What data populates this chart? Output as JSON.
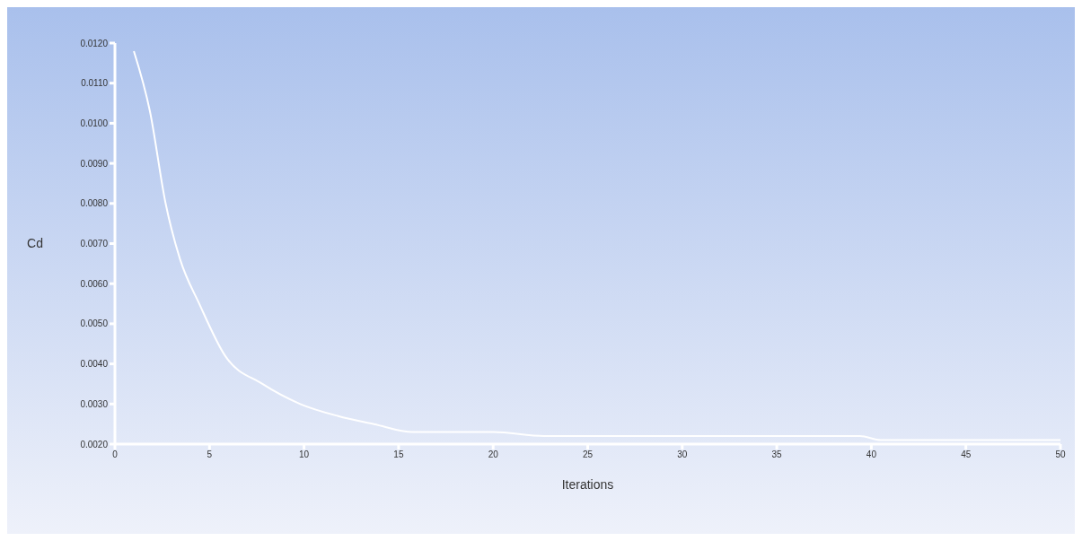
{
  "chart_data": {
    "type": "line",
    "xlabel": "Iterations",
    "ylabel": "Cd",
    "x": [
      1,
      1.85,
      2.68,
      3.45,
      4.46,
      5.83,
      7.8,
      9.8,
      11.8,
      13.7,
      15.75,
      17.6,
      20,
      22.7,
      25,
      30,
      35,
      39.4,
      40.5,
      45,
      50
    ],
    "series": [
      {
        "color": "#ffffff",
        "values": [
          0.0118,
          0.0103,
          0.008,
          0.0066,
          0.0055,
          0.0042,
          0.0035,
          0.003,
          0.0027,
          0.0025,
          0.0023,
          0.0023,
          0.0023,
          0.0022,
          0.0022,
          0.0022,
          0.0022,
          0.0022,
          0.0021,
          0.0021,
          0.0021
        ]
      }
    ],
    "xlim": [
      0,
      50
    ],
    "xticks": [
      0,
      5,
      10,
      15,
      20,
      25,
      30,
      35,
      40,
      45,
      50
    ],
    "ylim": [
      0.002,
      0.012
    ],
    "yticks": [
      {
        "value": 0.002,
        "label": "0.0020"
      },
      {
        "value": 0.003,
        "label": "0.0030"
      },
      {
        "value": 0.004,
        "label": "0.0040"
      },
      {
        "value": 0.005,
        "label": "0.0050"
      },
      {
        "value": 0.006,
        "label": "0.0060"
      },
      {
        "value": 0.007,
        "label": "0.0070"
      },
      {
        "value": 0.008,
        "label": "0.0080"
      },
      {
        "value": 0.009,
        "label": "0.0090"
      },
      {
        "value": 0.01,
        "label": "0.0100"
      },
      {
        "value": 0.011,
        "label": "0.0110"
      },
      {
        "value": 0.012,
        "label": "0.0120"
      }
    ],
    "grid": false,
    "marker": "none",
    "line_style": "solid"
  }
}
